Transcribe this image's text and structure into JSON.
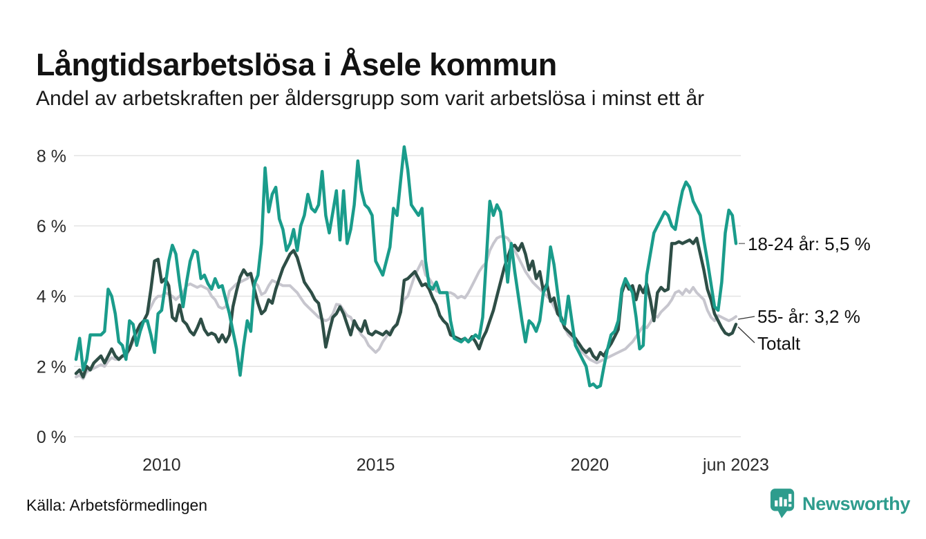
{
  "header": {
    "title": "Långtidsarbetslösa i Åsele kommun",
    "subtitle": "Andel av arbetskraften per åldersgrupp som varit arbetslösa i minst ett år"
  },
  "footer": {
    "source": "Källa: Arbetsförmedlingen",
    "brand": "Newsworthy"
  },
  "colors": {
    "accent_teal": "#1a9c8b",
    "dark_green": "#2e4e46",
    "light_gray": "#c7c6ce",
    "grid": "#e3e3e3",
    "brand_teal": "#2e9c8d",
    "text": "#111111"
  },
  "chart_data": {
    "type": "line",
    "title": "Långtidsarbetslösa i Åsele kommun",
    "subtitle": "Andel av arbetskraften per åldersgrupp som varit arbetslösa i minst ett år",
    "unit": "% av arbetskraften",
    "x_start": "2008-01",
    "x_end": "2023-06",
    "frequency": "monthly",
    "ylim": [
      0,
      8
    ],
    "grid": true,
    "grid_color": "#e3e3e3",
    "legend_position": "end-labels-right",
    "y_ticks": [
      {
        "value": 0,
        "label": "0 %"
      },
      {
        "value": 2,
        "label": "2 %"
      },
      {
        "value": 4,
        "label": "4 %"
      },
      {
        "value": 6,
        "label": "6 %"
      },
      {
        "value": 8,
        "label": "8 %"
      }
    ],
    "x_ticks": [
      {
        "month_index": 24,
        "label": "2010"
      },
      {
        "month_index": 84,
        "label": "2015"
      },
      {
        "month_index": 144,
        "label": "2020"
      },
      {
        "month_index": 185,
        "label": "jun 2023"
      }
    ],
    "draw_order": [
      2,
      1,
      0
    ],
    "series": [
      {
        "id": "18-24",
        "name": "18-24 år",
        "end_label": "18-24 år: 5,5 %",
        "last_value": 5.5,
        "color": "#1a9c8b",
        "width": 4.5,
        "values": [
          2.2,
          2.8,
          1.9,
          2.2,
          2.9,
          2.9,
          2.9,
          2.9,
          3.0,
          4.2,
          4.0,
          3.5,
          2.7,
          2.6,
          2.2,
          3.3,
          3.2,
          2.6,
          3.0,
          3.3,
          3.3,
          2.9,
          2.4,
          3.5,
          3.6,
          4.3,
          5.0,
          5.45,
          5.2,
          4.4,
          3.7,
          4.4,
          5.0,
          5.3,
          5.25,
          4.5,
          4.6,
          4.35,
          4.2,
          4.5,
          4.25,
          4.3,
          3.9,
          3.5,
          3.0,
          2.5,
          1.75,
          2.6,
          3.3,
          3.0,
          4.35,
          4.6,
          5.5,
          7.65,
          6.4,
          6.9,
          7.1,
          6.2,
          5.9,
          5.3,
          5.5,
          5.9,
          5.3,
          6.0,
          6.3,
          6.9,
          6.5,
          6.4,
          6.6,
          7.55,
          6.3,
          5.8,
          6.4,
          7.0,
          5.6,
          7.0,
          5.5,
          5.9,
          6.6,
          7.85,
          7.0,
          6.6,
          6.5,
          6.3,
          5.0,
          4.8,
          4.6,
          5.0,
          5.4,
          6.5,
          6.3,
          7.3,
          8.25,
          7.6,
          6.6,
          6.45,
          6.3,
          6.5,
          5.0,
          4.3,
          4.2,
          4.4,
          4.1,
          4.1,
          4.1,
          3.3,
          2.8,
          2.75,
          2.7,
          2.8,
          2.7,
          2.8,
          2.9,
          2.8,
          3.4,
          5.0,
          6.7,
          6.3,
          6.6,
          6.4,
          5.5,
          4.4,
          5.5,
          4.7,
          4.0,
          3.3,
          2.7,
          3.3,
          3.2,
          3.0,
          3.3,
          4.1,
          4.3,
          5.4,
          4.9,
          4.1,
          3.3,
          3.2,
          4.0,
          3.3,
          2.6,
          2.4,
          2.2,
          2.0,
          1.45,
          1.5,
          1.4,
          1.45,
          2.0,
          2.5,
          2.9,
          3.0,
          3.3,
          4.2,
          4.5,
          4.3,
          4.1,
          3.4,
          2.5,
          2.6,
          4.6,
          5.2,
          5.8,
          6.0,
          6.2,
          6.4,
          6.3,
          6.0,
          5.9,
          6.5,
          7.0,
          7.25,
          7.1,
          6.7,
          6.5,
          6.3,
          5.6,
          5.0,
          4.35,
          3.7,
          3.6,
          4.4,
          5.8,
          6.45,
          6.3,
          5.5
        ]
      },
      {
        "id": "55plus",
        "name": "55- år",
        "end_label": "55- år: 3,2 %",
        "last_value": 3.2,
        "color": "#2e4e46",
        "width": 4.5,
        "values": [
          1.8,
          1.9,
          1.7,
          2.0,
          1.9,
          2.1,
          2.2,
          2.3,
          2.1,
          2.3,
          2.5,
          2.3,
          2.2,
          2.3,
          2.35,
          2.5,
          2.8,
          3.0,
          3.2,
          3.3,
          3.5,
          4.2,
          5.0,
          5.05,
          4.4,
          4.5,
          4.3,
          3.4,
          3.3,
          3.75,
          3.3,
          3.2,
          3.0,
          2.9,
          3.1,
          3.35,
          3.05,
          2.9,
          2.95,
          2.9,
          2.7,
          2.9,
          2.7,
          2.9,
          3.7,
          4.15,
          4.55,
          4.75,
          4.6,
          4.65,
          4.2,
          3.8,
          3.5,
          3.6,
          3.9,
          3.8,
          4.2,
          4.5,
          4.8,
          5.0,
          5.2,
          5.3,
          5.1,
          4.75,
          4.4,
          4.25,
          4.1,
          3.9,
          3.8,
          3.3,
          2.55,
          3.0,
          3.4,
          3.5,
          3.7,
          3.5,
          3.2,
          2.9,
          3.3,
          3.1,
          3.0,
          3.3,
          2.95,
          2.9,
          3.0,
          2.95,
          2.9,
          3.0,
          2.9,
          3.1,
          3.2,
          3.55,
          4.45,
          4.5,
          4.6,
          4.7,
          4.5,
          4.3,
          4.35,
          4.2,
          3.95,
          3.75,
          3.45,
          3.3,
          3.2,
          2.9,
          2.85,
          2.8,
          2.75,
          2.8,
          2.7,
          2.85,
          2.7,
          2.5,
          2.8,
          3.0,
          3.3,
          3.6,
          4.0,
          4.4,
          4.8,
          5.1,
          5.4,
          5.45,
          5.3,
          5.5,
          5.2,
          4.75,
          5.0,
          4.5,
          4.7,
          4.15,
          4.35,
          3.85,
          3.95,
          3.5,
          3.4,
          3.1,
          3.0,
          2.9,
          2.8,
          2.65,
          2.5,
          2.4,
          2.5,
          2.3,
          2.2,
          2.4,
          2.3,
          2.5,
          2.65,
          2.85,
          3.05,
          4.1,
          4.4,
          4.2,
          4.3,
          3.9,
          4.3,
          4.1,
          4.35,
          3.9,
          3.3,
          4.1,
          4.25,
          4.15,
          4.2,
          5.5,
          5.5,
          5.55,
          5.5,
          5.55,
          5.6,
          5.5,
          5.65,
          5.2,
          4.75,
          4.2,
          3.9,
          3.5,
          3.3,
          3.1,
          2.95,
          2.9,
          2.95,
          3.2
        ]
      },
      {
        "id": "totalt",
        "name": "Totalt",
        "end_label": "Totalt",
        "last_value": 3.4,
        "color": "#c7c6ce",
        "width": 4,
        "values": [
          1.7,
          1.75,
          1.65,
          1.85,
          1.9,
          1.95,
          2.0,
          2.05,
          2.0,
          2.15,
          2.25,
          2.2,
          2.2,
          2.3,
          2.25,
          2.5,
          2.7,
          2.9,
          3.1,
          3.3,
          3.5,
          3.7,
          3.9,
          4.0,
          4.0,
          4.1,
          4.05,
          4.0,
          3.9,
          4.0,
          4.1,
          4.3,
          4.35,
          4.3,
          4.25,
          4.3,
          4.25,
          4.2,
          4.0,
          3.9,
          3.7,
          3.65,
          3.7,
          4.15,
          4.25,
          4.35,
          4.4,
          4.45,
          4.5,
          4.6,
          4.4,
          4.3,
          4.05,
          4.1,
          4.3,
          4.45,
          4.4,
          4.35,
          4.3,
          4.3,
          4.3,
          4.2,
          4.1,
          3.95,
          3.8,
          3.7,
          3.6,
          3.5,
          3.4,
          3.35,
          3.3,
          3.35,
          3.5,
          3.77,
          3.75,
          3.6,
          3.45,
          3.4,
          3.2,
          3.1,
          2.9,
          2.8,
          2.6,
          2.5,
          2.4,
          2.5,
          2.7,
          2.85,
          3.0,
          3.1,
          3.25,
          3.6,
          3.9,
          4.0,
          4.3,
          4.6,
          4.8,
          5.0,
          4.6,
          4.5,
          4.35,
          4.15,
          4.1,
          4.1,
          4.1,
          4.1,
          4.05,
          3.95,
          4.0,
          3.95,
          4.1,
          4.3,
          4.5,
          4.7,
          4.85,
          4.95,
          5.3,
          5.5,
          5.65,
          5.7,
          5.7,
          5.65,
          5.5,
          5.3,
          5.1,
          4.9,
          4.7,
          4.55,
          4.4,
          4.3,
          4.2,
          4.1,
          4.0,
          3.9,
          3.7,
          3.5,
          3.3,
          3.1,
          2.9,
          2.8,
          2.65,
          2.5,
          2.4,
          2.3,
          2.2,
          2.15,
          2.1,
          2.15,
          2.2,
          2.25,
          2.3,
          2.35,
          2.4,
          2.45,
          2.5,
          2.6,
          2.7,
          2.85,
          3.0,
          3.15,
          3.1,
          3.25,
          3.45,
          3.4,
          3.55,
          3.65,
          3.75,
          3.9,
          4.1,
          4.15,
          4.05,
          4.2,
          4.1,
          4.25,
          4.1,
          4.0,
          3.9,
          3.6,
          3.4,
          3.3,
          3.45,
          3.4,
          3.35,
          3.3,
          3.35,
          3.42
        ]
      }
    ]
  }
}
